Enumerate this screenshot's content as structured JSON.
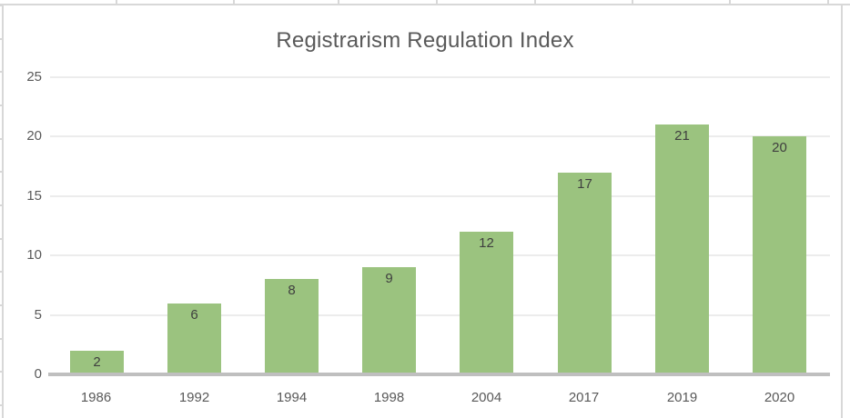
{
  "chart_data": {
    "type": "bar",
    "title": "Registrarism Regulation Index",
    "categories": [
      "1986",
      "1992",
      "1994",
      "1998",
      "2004",
      "2017",
      "2019",
      "2020"
    ],
    "values": [
      2,
      6,
      8,
      9,
      12,
      17,
      21,
      20
    ],
    "xlabel": "",
    "ylabel": "",
    "ylim": [
      0,
      25
    ],
    "yticks": [
      0,
      5,
      10,
      15,
      20,
      25
    ],
    "grid": "horizontal",
    "legend": "none",
    "data_labels": "inside-end",
    "colors": {
      "bar": "#9bc37f",
      "title_text": "#595959",
      "axis_text": "#595959",
      "data_label_text": "#3f3f3f",
      "gridline": "#ececec",
      "axis_line": "#bfbfbf",
      "worksheet_gridline": "#d8d8d8",
      "background": "#ffffff"
    }
  }
}
